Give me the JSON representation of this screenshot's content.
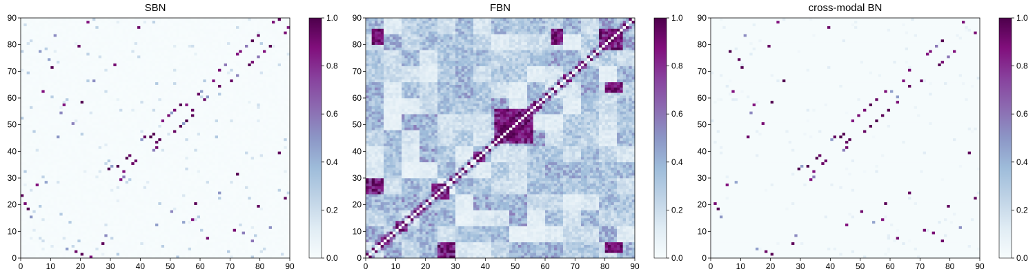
{
  "chart_data": [
    {
      "type": "heatmap",
      "title": "SBN",
      "xlim": [
        0,
        90
      ],
      "ylim": [
        0,
        90
      ],
      "matrix_size": 90,
      "x_ticks": [
        0,
        10,
        20,
        30,
        40,
        50,
        60,
        70,
        80,
        90
      ],
      "y_ticks": [
        0,
        10,
        20,
        30,
        40,
        50,
        60,
        70,
        80,
        90
      ],
      "colorbar": {
        "min": 0.0,
        "max": 1.0,
        "ticks": [
          "0.0",
          "0.2",
          "0.4",
          "0.6",
          "0.8",
          "1.0"
        ],
        "colormap": "BuPu"
      },
      "pattern": "sparse",
      "strong_links": [
        [
          29,
          33
        ],
        [
          33,
          29
        ],
        [
          32,
          34
        ],
        [
          34,
          32
        ],
        [
          35,
          37
        ],
        [
          37,
          35
        ],
        [
          36,
          38
        ],
        [
          38,
          36
        ],
        [
          41,
          45
        ],
        [
          45,
          41
        ],
        [
          43,
          45
        ],
        [
          45,
          43
        ],
        [
          44,
          46
        ],
        [
          46,
          44
        ],
        [
          47,
          51
        ],
        [
          51,
          47
        ],
        [
          49,
          53
        ],
        [
          53,
          49
        ],
        [
          51,
          55
        ],
        [
          55,
          51
        ],
        [
          53,
          57
        ],
        [
          57,
          53
        ],
        [
          55,
          57
        ],
        [
          57,
          55
        ],
        [
          59,
          61
        ],
        [
          61,
          59
        ],
        [
          64,
          66
        ],
        [
          66,
          64
        ],
        [
          66,
          70
        ],
        [
          70,
          66
        ],
        [
          72,
          76
        ],
        [
          76,
          72
        ],
        [
          73,
          77
        ],
        [
          77,
          73
        ],
        [
          77,
          81
        ],
        [
          81,
          77
        ],
        [
          79,
          83
        ],
        [
          83,
          79
        ],
        [
          84,
          88
        ],
        [
          88,
          84
        ],
        [
          86,
          89
        ],
        [
          89,
          86
        ],
        [
          2,
          18
        ],
        [
          18,
          2
        ],
        [
          5,
          27
        ],
        [
          27,
          5
        ],
        [
          0,
          23
        ],
        [
          23,
          0
        ],
        [
          1,
          20
        ],
        [
          20,
          1
        ],
        [
          10,
          71
        ],
        [
          71,
          10
        ],
        [
          22,
          88
        ],
        [
          88,
          22
        ],
        [
          19,
          79
        ],
        [
          79,
          19
        ],
        [
          14,
          57
        ],
        [
          57,
          14
        ],
        [
          31,
          72
        ],
        [
          72,
          31
        ],
        [
          20,
          58
        ],
        [
          58,
          20
        ],
        [
          39,
          86
        ],
        [
          86,
          39
        ],
        [
          7,
          62
        ],
        [
          62,
          7
        ]
      ],
      "medium_links": [
        [
          30,
          34
        ],
        [
          34,
          30
        ],
        [
          40,
          44
        ],
        [
          44,
          40
        ],
        [
          50,
          54
        ],
        [
          54,
          50
        ],
        [
          60,
          62
        ],
        [
          62,
          60
        ],
        [
          68,
          72
        ],
        [
          72,
          68
        ],
        [
          75,
          79
        ],
        [
          79,
          75
        ],
        [
          3,
          15
        ],
        [
          15,
          3
        ],
        [
          8,
          28
        ],
        [
          28,
          8
        ],
        [
          12,
          45
        ],
        [
          45,
          12
        ],
        [
          6,
          77
        ],
        [
          77,
          6
        ],
        [
          24,
          66
        ],
        [
          66,
          24
        ],
        [
          17,
          50
        ],
        [
          50,
          17
        ],
        [
          11,
          83
        ],
        [
          83,
          11
        ],
        [
          13,
          54
        ],
        [
          54,
          13
        ],
        [
          9,
          74
        ],
        [
          74,
          9
        ]
      ]
    },
    {
      "type": "heatmap",
      "title": "FBN",
      "xlim": [
        0,
        90
      ],
      "ylim": [
        0,
        90
      ],
      "matrix_size": 90,
      "x_ticks": [
        0,
        10,
        20,
        30,
        40,
        50,
        60,
        70,
        80,
        90
      ],
      "y_ticks": [
        0,
        10,
        20,
        30,
        40,
        50,
        60,
        70,
        80,
        90
      ],
      "colorbar": {
        "min": 0.0,
        "max": 1.0,
        "ticks": [
          "0.0",
          "0.2",
          "0.4",
          "0.6",
          "0.8",
          "1.0"
        ],
        "colormap": "BuPu"
      },
      "pattern": "dense",
      "strong_blocks": [
        [
          43,
          56,
          43,
          56
        ],
        [
          78,
          86,
          78,
          86
        ],
        [
          22,
          28,
          22,
          28
        ],
        [
          0,
          6,
          24,
          30
        ],
        [
          24,
          30,
          0,
          6
        ],
        [
          10,
          14,
          10,
          14
        ],
        [
          36,
          40,
          36,
          40
        ],
        [
          62,
          66,
          80,
          86
        ],
        [
          80,
          86,
          62,
          66
        ],
        [
          2,
          6,
          80,
          86
        ],
        [
          80,
          86,
          2,
          6
        ]
      ]
    },
    {
      "type": "heatmap",
      "title": "cross-modal BN",
      "xlim": [
        0,
        90
      ],
      "ylim": [
        0,
        90
      ],
      "matrix_size": 90,
      "x_ticks": [
        0,
        10,
        20,
        30,
        40,
        50,
        60,
        70,
        80,
        90
      ],
      "y_ticks": [
        0,
        10,
        20,
        30,
        40,
        50,
        60,
        70,
        80,
        90
      ],
      "colorbar": {
        "min": 0.0,
        "max": 1.0,
        "ticks": [
          "0.0",
          "0.2",
          "0.4",
          "0.6",
          "0.8",
          "1.0"
        ],
        "colormap": "BuPu"
      },
      "pattern": "sparse",
      "strong_links": [
        [
          29,
          33
        ],
        [
          33,
          29
        ],
        [
          32,
          34
        ],
        [
          34,
          32
        ],
        [
          35,
          37
        ],
        [
          37,
          35
        ],
        [
          36,
          38
        ],
        [
          38,
          36
        ],
        [
          41,
          45
        ],
        [
          45,
          41
        ],
        [
          43,
          45
        ],
        [
          45,
          43
        ],
        [
          44,
          46
        ],
        [
          46,
          44
        ],
        [
          47,
          51
        ],
        [
          51,
          47
        ],
        [
          49,
          53
        ],
        [
          53,
          49
        ],
        [
          51,
          55
        ],
        [
          55,
          51
        ],
        [
          53,
          57
        ],
        [
          57,
          53
        ],
        [
          55,
          59
        ],
        [
          59,
          55
        ],
        [
          58,
          62
        ],
        [
          62,
          58
        ],
        [
          64,
          66
        ],
        [
          66,
          64
        ],
        [
          66,
          70
        ],
        [
          70,
          66
        ],
        [
          72,
          76
        ],
        [
          76,
          72
        ],
        [
          73,
          77
        ],
        [
          77,
          73
        ],
        [
          77,
          81
        ],
        [
          81,
          77
        ],
        [
          84,
          88
        ],
        [
          88,
          84
        ],
        [
          2,
          18
        ],
        [
          18,
          2
        ],
        [
          5,
          27
        ],
        [
          27,
          5
        ],
        [
          1,
          20
        ],
        [
          20,
          1
        ],
        [
          10,
          71
        ],
        [
          71,
          10
        ],
        [
          22,
          88
        ],
        [
          88,
          22
        ],
        [
          19,
          79
        ],
        [
          79,
          19
        ],
        [
          14,
          57
        ],
        [
          57,
          14
        ],
        [
          20,
          58
        ],
        [
          58,
          20
        ],
        [
          39,
          86
        ],
        [
          86,
          39
        ],
        [
          7,
          62
        ],
        [
          62,
          7
        ],
        [
          9,
          74
        ],
        [
          74,
          9
        ],
        [
          12,
          45
        ],
        [
          45,
          12
        ],
        [
          6,
          77
        ],
        [
          77,
          6
        ],
        [
          17,
          50
        ],
        [
          50,
          17
        ],
        [
          24,
          66
        ],
        [
          66,
          24
        ]
      ],
      "medium_links": [
        [
          30,
          34
        ],
        [
          34,
          30
        ],
        [
          40,
          44
        ],
        [
          44,
          40
        ],
        [
          60,
          62
        ],
        [
          62,
          60
        ],
        [
          75,
          79
        ],
        [
          79,
          75
        ],
        [
          3,
          15
        ],
        [
          15,
          3
        ],
        [
          8,
          28
        ],
        [
          28,
          8
        ],
        [
          11,
          83
        ],
        [
          83,
          11
        ],
        [
          13,
          54
        ],
        [
          54,
          13
        ]
      ]
    }
  ]
}
